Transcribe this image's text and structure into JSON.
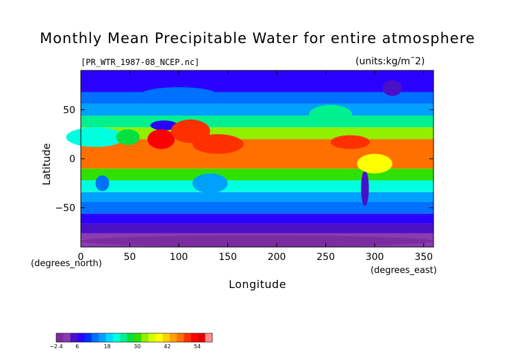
{
  "chart_data": {
    "type": "heatmap",
    "title": "Monthly Mean Precipitable Water for entire atmosphere",
    "subtitle": "[PR_WTR_1987-08_NCEP.nc]",
    "units": "(units:kg/m¯2)",
    "xlabel": "Longitude",
    "xlabel_units": "(degrees_east)",
    "ylabel": "Latitude",
    "ylabel_units": "(degrees_north)",
    "xlim": [
      0,
      360
    ],
    "ylim": [
      -90,
      90
    ],
    "x_ticks": [
      0,
      50,
      100,
      150,
      200,
      250,
      300,
      350
    ],
    "x_tick_labels": [
      "0",
      "50",
      "100",
      "150",
      "200",
      "250",
      "300",
      "350"
    ],
    "y_ticks": [
      -50,
      0,
      50
    ],
    "y_tick_labels": [
      "−50",
      "0",
      "50"
    ],
    "colorbar": {
      "ticks": [
        -2.4,
        6,
        18,
        30,
        42,
        54
      ],
      "tick_labels": [
        "−2.4",
        "6",
        "18",
        "30",
        "42",
        "54"
      ],
      "colors": [
        "#7b2ca0",
        "#8a3cb0",
        "#4a10c8",
        "#2a00ff",
        "#0030ff",
        "#0070ff",
        "#00a0ff",
        "#00d8ff",
        "#00ffe0",
        "#00f090",
        "#00e040",
        "#30e000",
        "#90f000",
        "#d8ff00",
        "#ffff00",
        "#ffd000",
        "#ffa000",
        "#ff7000",
        "#ff3000",
        "#ff0000",
        "#e00000",
        "#ff9090"
      ]
    },
    "bands": [
      {
        "lat": [
          -90,
          -76
        ],
        "value": 1
      },
      {
        "lat": [
          -76,
          -66
        ],
        "value": 4
      },
      {
        "lat": [
          -66,
          -56
        ],
        "value": 7
      },
      {
        "lat": [
          -56,
          -44
        ],
        "value": 12
      },
      {
        "lat": [
          -44,
          -34
        ],
        "value": 17
      },
      {
        "lat": [
          -34,
          -22
        ],
        "value": 22
      },
      {
        "lat": [
          -22,
          -10
        ],
        "value": 30
      },
      {
        "lat": [
          -10,
          20
        ],
        "value": 46
      },
      {
        "lat": [
          20,
          32
        ],
        "value": 33
      },
      {
        "lat": [
          32,
          44
        ],
        "value": 24
      },
      {
        "lat": [
          44,
          56
        ],
        "value": 17
      },
      {
        "lat": [
          56,
          68
        ],
        "value": 12
      },
      {
        "lat": [
          68,
          90
        ],
        "value": 7
      }
    ]
  }
}
